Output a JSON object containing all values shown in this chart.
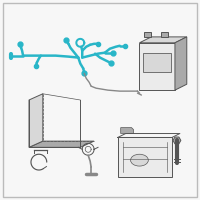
{
  "bg_color": "#f7f7f7",
  "border_color": "#bbbbbb",
  "wiring_color": "#29b6c8",
  "gray_line": "#888888",
  "dark_gray": "#555555",
  "light_gray": "#aaaaaa",
  "box_color": "#d8d8d8",
  "box_face": "#ebebeb",
  "lw_wire": 1.8,
  "lw_part": 0.7
}
